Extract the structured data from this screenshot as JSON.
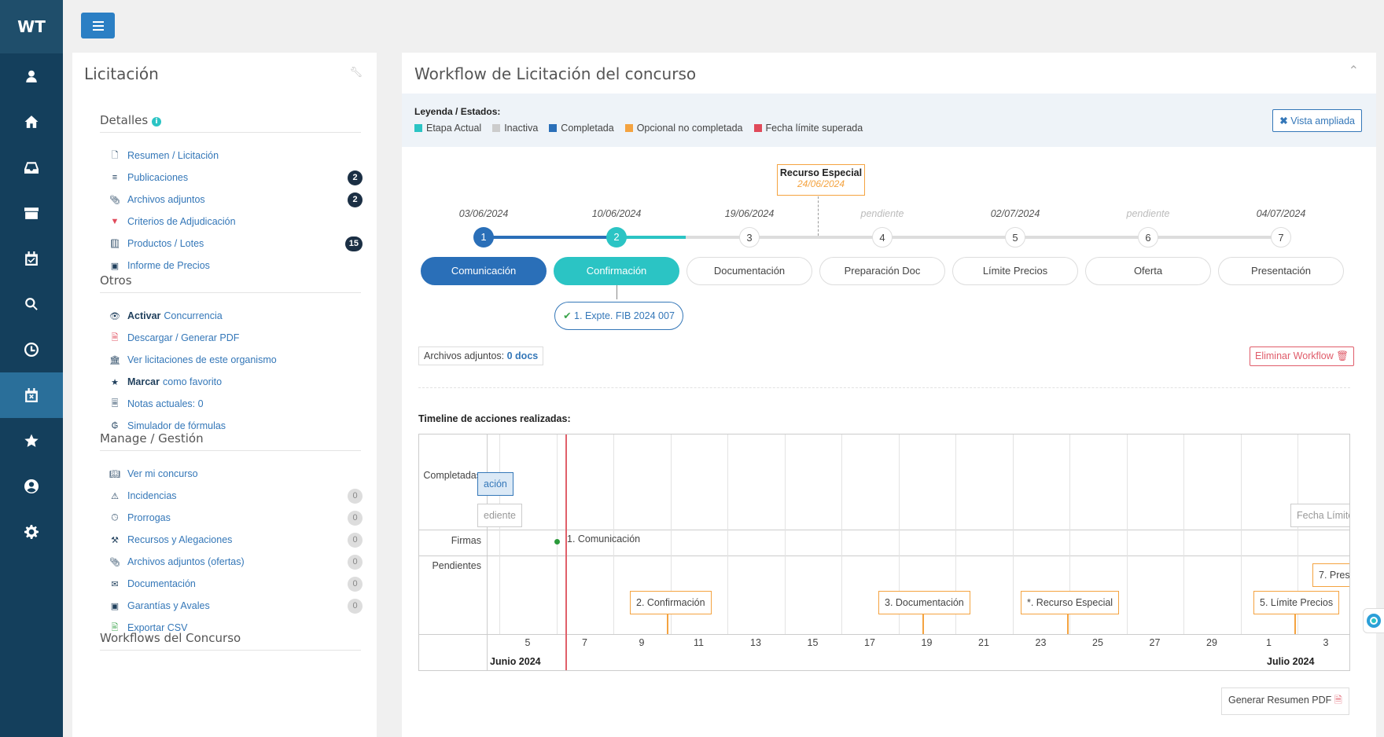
{
  "app": {
    "logo": "WT"
  },
  "left_panel": {
    "title": "Licitación",
    "sections": [
      {
        "title": "Detalles",
        "items": [
          {
            "icon": "file-icon",
            "label": "Resumen / Licitación"
          },
          {
            "icon": "rss-icon",
            "label": "Publicaciones",
            "badge": "2"
          },
          {
            "icon": "paperclip-icon",
            "label": "Archivos adjuntos",
            "badge": "2"
          },
          {
            "icon": "filter-icon",
            "label": "Criterios de Adjudicación"
          },
          {
            "icon": "book-icon",
            "label": "Productos / Lotes",
            "badge": "15"
          },
          {
            "icon": "money-icon",
            "label": "Informe de Precios"
          }
        ]
      },
      {
        "title": "Otros",
        "items": [
          {
            "icon": "binoculars-icon",
            "bold": "Activar",
            "label": "Concurrencia"
          },
          {
            "icon": "pdf-icon",
            "label": "Descargar / Generar PDF"
          },
          {
            "icon": "bank-icon",
            "label": "Ver licitaciones de este organismo"
          },
          {
            "icon": "star-icon",
            "bold": "Marcar",
            "label": "como favorito"
          },
          {
            "icon": "note-icon",
            "label": "Notas actuales: 0"
          },
          {
            "icon": "formula-icon",
            "label": "Simulador de fórmulas"
          }
        ]
      },
      {
        "title": "Manage / Gestión",
        "items": [
          {
            "icon": "book-open-icon",
            "label": "Ver mi concurso"
          },
          {
            "icon": "warning-icon",
            "label": "Incidencias",
            "badge": "0"
          },
          {
            "icon": "clock-icon",
            "label": "Prorrogas",
            "badge": "0"
          },
          {
            "icon": "gavel-icon",
            "label": "Recursos y Alegaciones",
            "badge": "0"
          },
          {
            "icon": "paperclip-icon",
            "label": "Archivos adjuntos (ofertas)",
            "badge": "0"
          },
          {
            "icon": "envelope-icon",
            "label": "Documentación",
            "badge": "0"
          },
          {
            "icon": "money-icon",
            "label": "Garantías y Avales",
            "badge": "0"
          },
          {
            "icon": "excel-icon",
            "label": "Exportar CSV"
          }
        ]
      },
      {
        "title": "Workflows del Concurso",
        "items": []
      }
    ]
  },
  "workflow": {
    "title": "Workflow de Licitación del concurso",
    "legend_title": "Leyenda / Estados:",
    "legend": [
      {
        "label": "Etapa Actual",
        "color": "#2bc4c4"
      },
      {
        "label": "Inactiva",
        "color": "#cccccc"
      },
      {
        "label": "Completada",
        "color": "#2a6fb8"
      },
      {
        "label": "Opcional no completada",
        "color": "#f4a340"
      },
      {
        "label": "Fecha límite superada",
        "color": "#e04a5a"
      }
    ],
    "vista_label": "Vista ampliada",
    "recurso": {
      "title": "Recurso Especial",
      "date": "24/06/2024"
    },
    "steps": [
      {
        "num": "1",
        "date": "03/06/2024",
        "label": "Comunicación",
        "state": "completed"
      },
      {
        "num": "2",
        "date": "10/06/2024",
        "label": "Confirmación",
        "state": "current"
      },
      {
        "num": "3",
        "date": "19/06/2024",
        "label": "Documentación",
        "state": "inactive"
      },
      {
        "num": "4",
        "date": "pendiente",
        "label": "Preparación Doc",
        "state": "inactive"
      },
      {
        "num": "5",
        "date": "02/07/2024",
        "label": "Límite Precios",
        "state": "inactive"
      },
      {
        "num": "6",
        "date": "pendiente",
        "label": "Oferta",
        "state": "inactive"
      },
      {
        "num": "7",
        "date": "04/07/2024",
        "label": "Presentación",
        "state": "inactive"
      }
    ],
    "expte": "1. Expte. FIB 2024 007",
    "archivos_label": "Archivos adjuntos:",
    "archivos_value": "0 docs",
    "eliminar_label": "Eliminar Workflow",
    "timeline_title": "Timeline de acciones realizadas:",
    "timeline": {
      "lanes": [
        "Completadas",
        "Firmas",
        "Pendientes"
      ],
      "ticks": [
        "5",
        "7",
        "9",
        "11",
        "13",
        "15",
        "17",
        "19",
        "21",
        "23",
        "25",
        "27",
        "29",
        "1",
        "3"
      ],
      "months": [
        "Junio 2024",
        "Julio 2024"
      ],
      "items": {
        "completed_cut": "ación",
        "pendiente_cut": "ediente",
        "fecha_cut": "Fecha Límite",
        "firma": "1. Comunicación",
        "confirmacion": "2. Confirmación",
        "documentacion": "3. Documentación",
        "recurso": "*. Recurso Especial",
        "limite": "5. Límite Precios",
        "presentacion_cut": "7. Pres"
      }
    },
    "gen_label": "Generar Resumen PDF"
  }
}
